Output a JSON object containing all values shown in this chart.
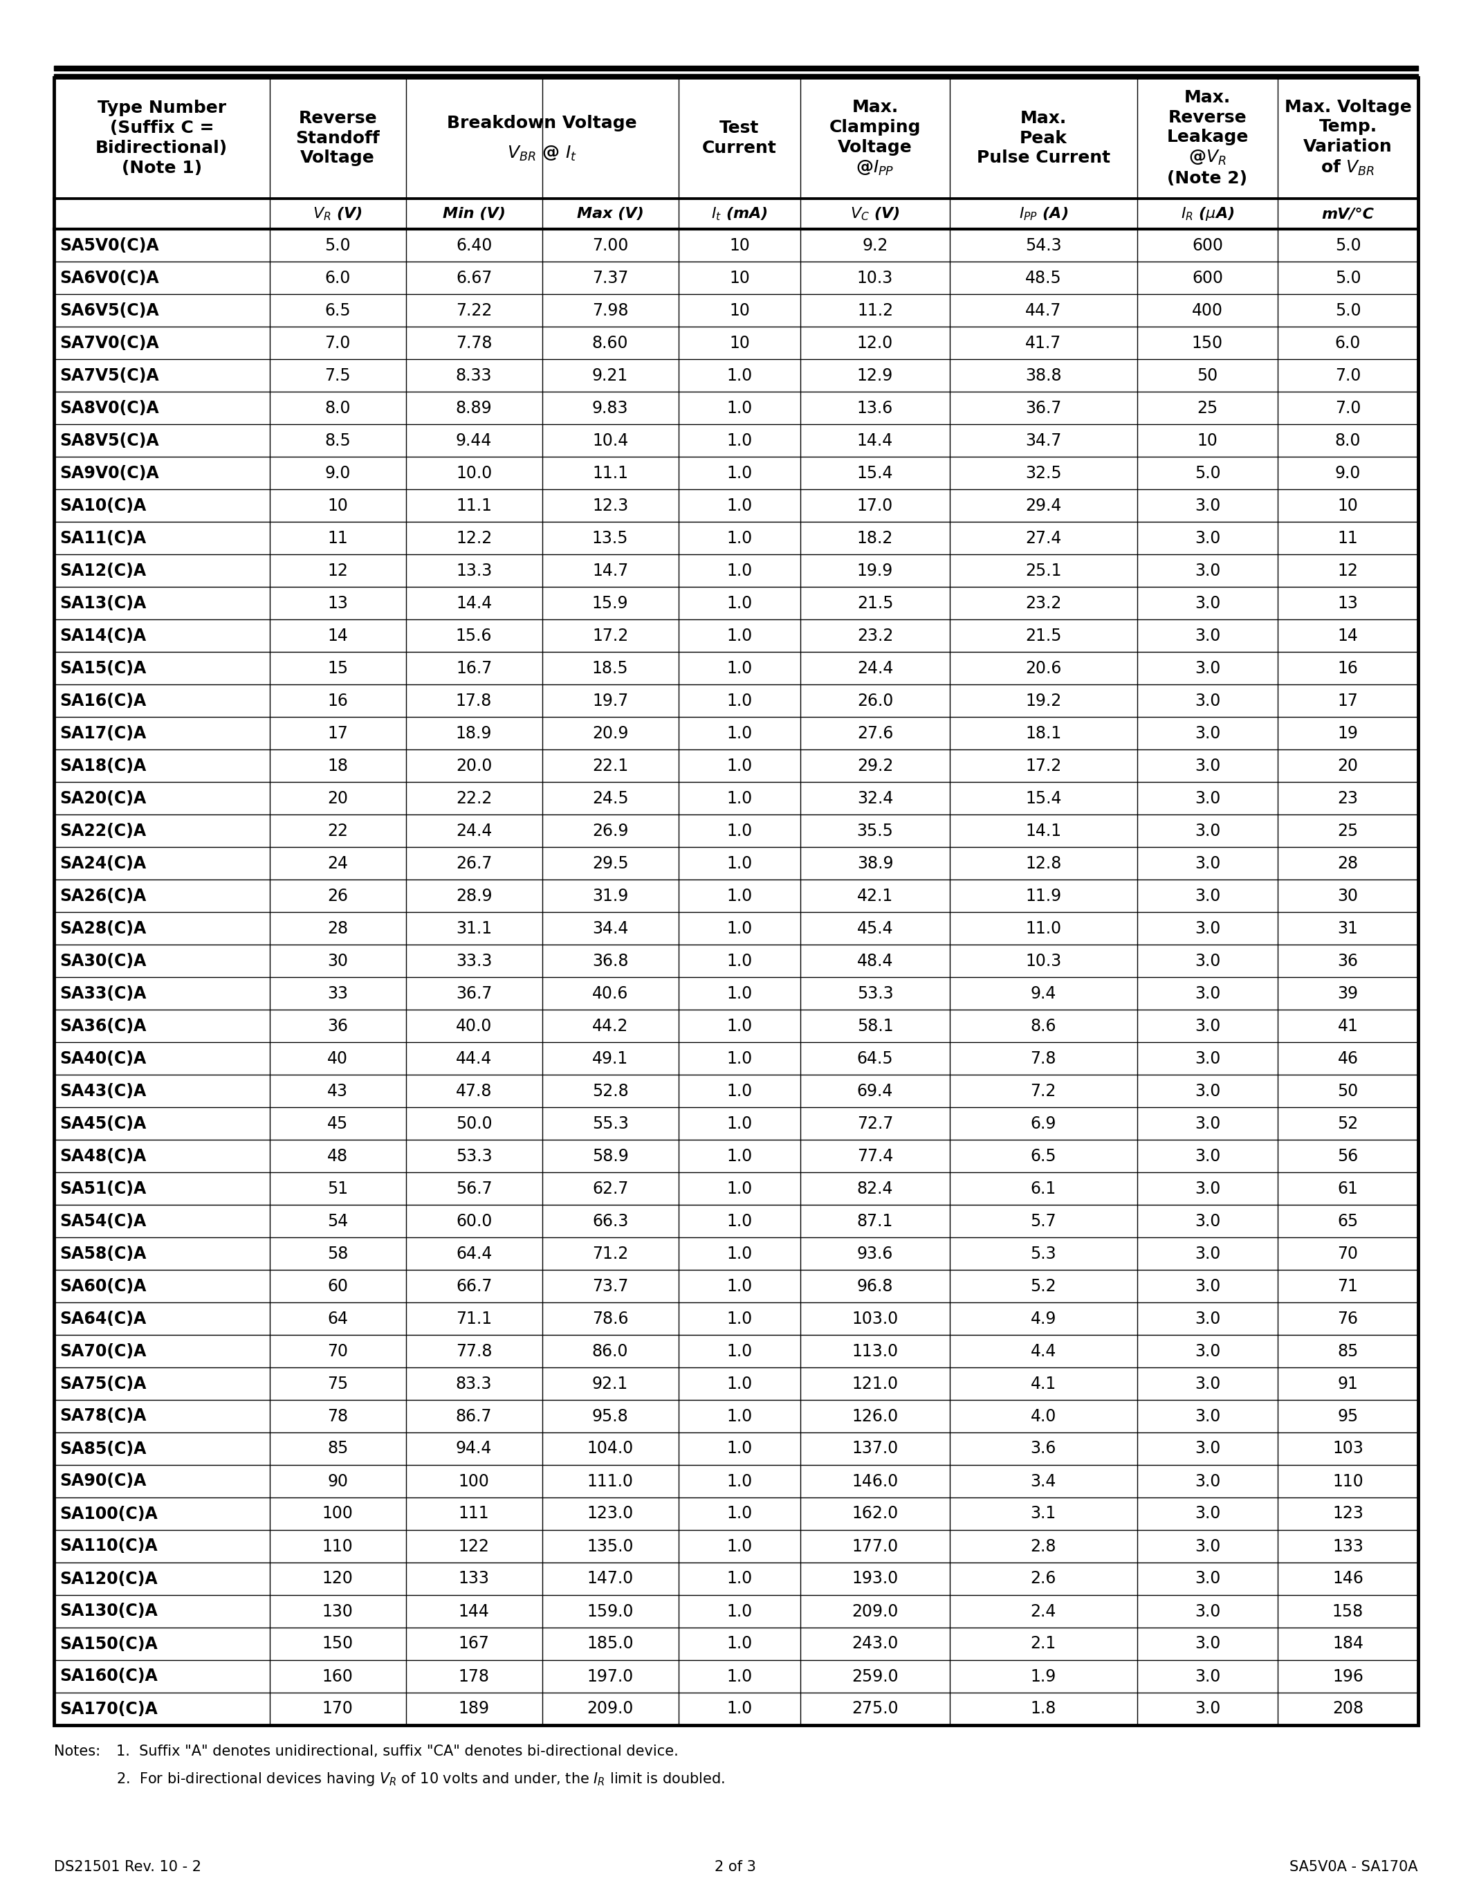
{
  "footer_left": "DS21501 Rev. 10 - 2",
  "footer_center": "2 of 3",
  "footer_right": "SA5V0A - SA170A",
  "rows": [
    [
      "SA5V0(C)A",
      "5.0",
      "6.40",
      "7.00",
      "10",
      "9.2",
      "54.3",
      "600",
      "5.0"
    ],
    [
      "SA6V0(C)A",
      "6.0",
      "6.67",
      "7.37",
      "10",
      "10.3",
      "48.5",
      "600",
      "5.0"
    ],
    [
      "SA6V5(C)A",
      "6.5",
      "7.22",
      "7.98",
      "10",
      "11.2",
      "44.7",
      "400",
      "5.0"
    ],
    [
      "SA7V0(C)A",
      "7.0",
      "7.78",
      "8.60",
      "10",
      "12.0",
      "41.7",
      "150",
      "6.0"
    ],
    [
      "SA7V5(C)A",
      "7.5",
      "8.33",
      "9.21",
      "1.0",
      "12.9",
      "38.8",
      "50",
      "7.0"
    ],
    [
      "SA8V0(C)A",
      "8.0",
      "8.89",
      "9.83",
      "1.0",
      "13.6",
      "36.7",
      "25",
      "7.0"
    ],
    [
      "SA8V5(C)A",
      "8.5",
      "9.44",
      "10.4",
      "1.0",
      "14.4",
      "34.7",
      "10",
      "8.0"
    ],
    [
      "SA9V0(C)A",
      "9.0",
      "10.0",
      "11.1",
      "1.0",
      "15.4",
      "32.5",
      "5.0",
      "9.0"
    ],
    [
      "SA10(C)A",
      "10",
      "11.1",
      "12.3",
      "1.0",
      "17.0",
      "29.4",
      "3.0",
      "10"
    ],
    [
      "SA11(C)A",
      "11",
      "12.2",
      "13.5",
      "1.0",
      "18.2",
      "27.4",
      "3.0",
      "11"
    ],
    [
      "SA12(C)A",
      "12",
      "13.3",
      "14.7",
      "1.0",
      "19.9",
      "25.1",
      "3.0",
      "12"
    ],
    [
      "SA13(C)A",
      "13",
      "14.4",
      "15.9",
      "1.0",
      "21.5",
      "23.2",
      "3.0",
      "13"
    ],
    [
      "SA14(C)A",
      "14",
      "15.6",
      "17.2",
      "1.0",
      "23.2",
      "21.5",
      "3.0",
      "14"
    ],
    [
      "SA15(C)A",
      "15",
      "16.7",
      "18.5",
      "1.0",
      "24.4",
      "20.6",
      "3.0",
      "16"
    ],
    [
      "SA16(C)A",
      "16",
      "17.8",
      "19.7",
      "1.0",
      "26.0",
      "19.2",
      "3.0",
      "17"
    ],
    [
      "SA17(C)A",
      "17",
      "18.9",
      "20.9",
      "1.0",
      "27.6",
      "18.1",
      "3.0",
      "19"
    ],
    [
      "SA18(C)A",
      "18",
      "20.0",
      "22.1",
      "1.0",
      "29.2",
      "17.2",
      "3.0",
      "20"
    ],
    [
      "SA20(C)A",
      "20",
      "22.2",
      "24.5",
      "1.0",
      "32.4",
      "15.4",
      "3.0",
      "23"
    ],
    [
      "SA22(C)A",
      "22",
      "24.4",
      "26.9",
      "1.0",
      "35.5",
      "14.1",
      "3.0",
      "25"
    ],
    [
      "SA24(C)A",
      "24",
      "26.7",
      "29.5",
      "1.0",
      "38.9",
      "12.8",
      "3.0",
      "28"
    ],
    [
      "SA26(C)A",
      "26",
      "28.9",
      "31.9",
      "1.0",
      "42.1",
      "11.9",
      "3.0",
      "30"
    ],
    [
      "SA28(C)A",
      "28",
      "31.1",
      "34.4",
      "1.0",
      "45.4",
      "11.0",
      "3.0",
      "31"
    ],
    [
      "SA30(C)A",
      "30",
      "33.3",
      "36.8",
      "1.0",
      "48.4",
      "10.3",
      "3.0",
      "36"
    ],
    [
      "SA33(C)A",
      "33",
      "36.7",
      "40.6",
      "1.0",
      "53.3",
      "9.4",
      "3.0",
      "39"
    ],
    [
      "SA36(C)A",
      "36",
      "40.0",
      "44.2",
      "1.0",
      "58.1",
      "8.6",
      "3.0",
      "41"
    ],
    [
      "SA40(C)A",
      "40",
      "44.4",
      "49.1",
      "1.0",
      "64.5",
      "7.8",
      "3.0",
      "46"
    ],
    [
      "SA43(C)A",
      "43",
      "47.8",
      "52.8",
      "1.0",
      "69.4",
      "7.2",
      "3.0",
      "50"
    ],
    [
      "SA45(C)A",
      "45",
      "50.0",
      "55.3",
      "1.0",
      "72.7",
      "6.9",
      "3.0",
      "52"
    ],
    [
      "SA48(C)A",
      "48",
      "53.3",
      "58.9",
      "1.0",
      "77.4",
      "6.5",
      "3.0",
      "56"
    ],
    [
      "SA51(C)A",
      "51",
      "56.7",
      "62.7",
      "1.0",
      "82.4",
      "6.1",
      "3.0",
      "61"
    ],
    [
      "SA54(C)A",
      "54",
      "60.0",
      "66.3",
      "1.0",
      "87.1",
      "5.7",
      "3.0",
      "65"
    ],
    [
      "SA58(C)A",
      "58",
      "64.4",
      "71.2",
      "1.0",
      "93.6",
      "5.3",
      "3.0",
      "70"
    ],
    [
      "SA60(C)A",
      "60",
      "66.7",
      "73.7",
      "1.0",
      "96.8",
      "5.2",
      "3.0",
      "71"
    ],
    [
      "SA64(C)A",
      "64",
      "71.1",
      "78.6",
      "1.0",
      "103.0",
      "4.9",
      "3.0",
      "76"
    ],
    [
      "SA70(C)A",
      "70",
      "77.8",
      "86.0",
      "1.0",
      "113.0",
      "4.4",
      "3.0",
      "85"
    ],
    [
      "SA75(C)A",
      "75",
      "83.3",
      "92.1",
      "1.0",
      "121.0",
      "4.1",
      "3.0",
      "91"
    ],
    [
      "SA78(C)A",
      "78",
      "86.7",
      "95.8",
      "1.0",
      "126.0",
      "4.0",
      "3.0",
      "95"
    ],
    [
      "SA85(C)A",
      "85",
      "94.4",
      "104.0",
      "1.0",
      "137.0",
      "3.6",
      "3.0",
      "103"
    ],
    [
      "SA90(C)A",
      "90",
      "100",
      "111.0",
      "1.0",
      "146.0",
      "3.4",
      "3.0",
      "110"
    ],
    [
      "SA100(C)A",
      "100",
      "111",
      "123.0",
      "1.0",
      "162.0",
      "3.1",
      "3.0",
      "123"
    ],
    [
      "SA110(C)A",
      "110",
      "122",
      "135.0",
      "1.0",
      "177.0",
      "2.8",
      "3.0",
      "133"
    ],
    [
      "SA120(C)A",
      "120",
      "133",
      "147.0",
      "1.0",
      "193.0",
      "2.6",
      "3.0",
      "146"
    ],
    [
      "SA130(C)A",
      "130",
      "144",
      "159.0",
      "1.0",
      "209.0",
      "2.4",
      "3.0",
      "158"
    ],
    [
      "SA150(C)A",
      "150",
      "167",
      "185.0",
      "1.0",
      "243.0",
      "2.1",
      "3.0",
      "184"
    ],
    [
      "SA160(C)A",
      "160",
      "178",
      "197.0",
      "1.0",
      "259.0",
      "1.9",
      "3.0",
      "196"
    ],
    [
      "SA170(C)A",
      "170",
      "189",
      "209.0",
      "1.0",
      "275.0",
      "1.8",
      "3.0",
      "208"
    ]
  ]
}
